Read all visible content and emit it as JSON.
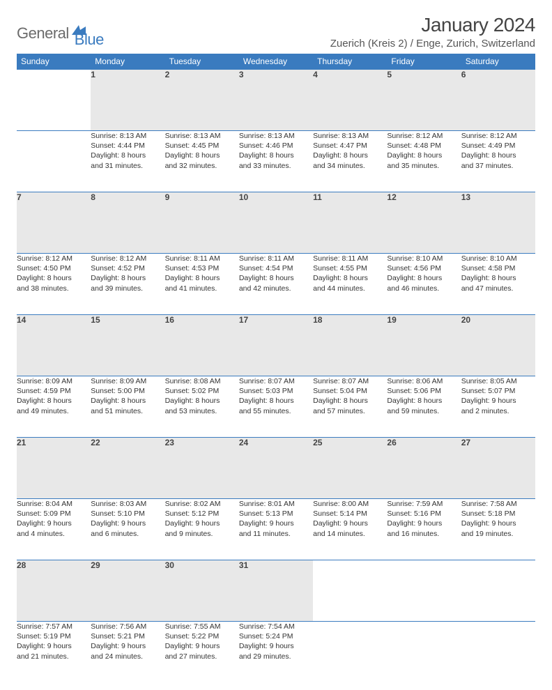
{
  "brand": {
    "part1": "General",
    "part2": "Blue",
    "color_gray": "#6b6b6b",
    "color_blue": "#3a7bbf"
  },
  "title": {
    "month": "January 2024",
    "location": "Zuerich (Kreis 2) / Enge, Zurich, Switzerland"
  },
  "style": {
    "header_bg": "#3a7bbf",
    "header_fg": "#ffffff",
    "daynum_bg": "#e8e8e8",
    "row_border": "#3a7bbf",
    "body_font_size": 10.5,
    "daynum_font_size": 12,
    "header_font_size": 12
  },
  "weekdays": [
    "Sunday",
    "Monday",
    "Tuesday",
    "Wednesday",
    "Thursday",
    "Friday",
    "Saturday"
  ],
  "weeks": [
    {
      "days": [
        {
          "num": "",
          "lines": []
        },
        {
          "num": "1",
          "lines": [
            "Sunrise: 8:13 AM",
            "Sunset: 4:44 PM",
            "Daylight: 8 hours",
            "and 31 minutes."
          ]
        },
        {
          "num": "2",
          "lines": [
            "Sunrise: 8:13 AM",
            "Sunset: 4:45 PM",
            "Daylight: 8 hours",
            "and 32 minutes."
          ]
        },
        {
          "num": "3",
          "lines": [
            "Sunrise: 8:13 AM",
            "Sunset: 4:46 PM",
            "Daylight: 8 hours",
            "and 33 minutes."
          ]
        },
        {
          "num": "4",
          "lines": [
            "Sunrise: 8:13 AM",
            "Sunset: 4:47 PM",
            "Daylight: 8 hours",
            "and 34 minutes."
          ]
        },
        {
          "num": "5",
          "lines": [
            "Sunrise: 8:12 AM",
            "Sunset: 4:48 PM",
            "Daylight: 8 hours",
            "and 35 minutes."
          ]
        },
        {
          "num": "6",
          "lines": [
            "Sunrise: 8:12 AM",
            "Sunset: 4:49 PM",
            "Daylight: 8 hours",
            "and 37 minutes."
          ]
        }
      ]
    },
    {
      "days": [
        {
          "num": "7",
          "lines": [
            "Sunrise: 8:12 AM",
            "Sunset: 4:50 PM",
            "Daylight: 8 hours",
            "and 38 minutes."
          ]
        },
        {
          "num": "8",
          "lines": [
            "Sunrise: 8:12 AM",
            "Sunset: 4:52 PM",
            "Daylight: 8 hours",
            "and 39 minutes."
          ]
        },
        {
          "num": "9",
          "lines": [
            "Sunrise: 8:11 AM",
            "Sunset: 4:53 PM",
            "Daylight: 8 hours",
            "and 41 minutes."
          ]
        },
        {
          "num": "10",
          "lines": [
            "Sunrise: 8:11 AM",
            "Sunset: 4:54 PM",
            "Daylight: 8 hours",
            "and 42 minutes."
          ]
        },
        {
          "num": "11",
          "lines": [
            "Sunrise: 8:11 AM",
            "Sunset: 4:55 PM",
            "Daylight: 8 hours",
            "and 44 minutes."
          ]
        },
        {
          "num": "12",
          "lines": [
            "Sunrise: 8:10 AM",
            "Sunset: 4:56 PM",
            "Daylight: 8 hours",
            "and 46 minutes."
          ]
        },
        {
          "num": "13",
          "lines": [
            "Sunrise: 8:10 AM",
            "Sunset: 4:58 PM",
            "Daylight: 8 hours",
            "and 47 minutes."
          ]
        }
      ]
    },
    {
      "days": [
        {
          "num": "14",
          "lines": [
            "Sunrise: 8:09 AM",
            "Sunset: 4:59 PM",
            "Daylight: 8 hours",
            "and 49 minutes."
          ]
        },
        {
          "num": "15",
          "lines": [
            "Sunrise: 8:09 AM",
            "Sunset: 5:00 PM",
            "Daylight: 8 hours",
            "and 51 minutes."
          ]
        },
        {
          "num": "16",
          "lines": [
            "Sunrise: 8:08 AM",
            "Sunset: 5:02 PM",
            "Daylight: 8 hours",
            "and 53 minutes."
          ]
        },
        {
          "num": "17",
          "lines": [
            "Sunrise: 8:07 AM",
            "Sunset: 5:03 PM",
            "Daylight: 8 hours",
            "and 55 minutes."
          ]
        },
        {
          "num": "18",
          "lines": [
            "Sunrise: 8:07 AM",
            "Sunset: 5:04 PM",
            "Daylight: 8 hours",
            "and 57 minutes."
          ]
        },
        {
          "num": "19",
          "lines": [
            "Sunrise: 8:06 AM",
            "Sunset: 5:06 PM",
            "Daylight: 8 hours",
            "and 59 minutes."
          ]
        },
        {
          "num": "20",
          "lines": [
            "Sunrise: 8:05 AM",
            "Sunset: 5:07 PM",
            "Daylight: 9 hours",
            "and 2 minutes."
          ]
        }
      ]
    },
    {
      "days": [
        {
          "num": "21",
          "lines": [
            "Sunrise: 8:04 AM",
            "Sunset: 5:09 PM",
            "Daylight: 9 hours",
            "and 4 minutes."
          ]
        },
        {
          "num": "22",
          "lines": [
            "Sunrise: 8:03 AM",
            "Sunset: 5:10 PM",
            "Daylight: 9 hours",
            "and 6 minutes."
          ]
        },
        {
          "num": "23",
          "lines": [
            "Sunrise: 8:02 AM",
            "Sunset: 5:12 PM",
            "Daylight: 9 hours",
            "and 9 minutes."
          ]
        },
        {
          "num": "24",
          "lines": [
            "Sunrise: 8:01 AM",
            "Sunset: 5:13 PM",
            "Daylight: 9 hours",
            "and 11 minutes."
          ]
        },
        {
          "num": "25",
          "lines": [
            "Sunrise: 8:00 AM",
            "Sunset: 5:14 PM",
            "Daylight: 9 hours",
            "and 14 minutes."
          ]
        },
        {
          "num": "26",
          "lines": [
            "Sunrise: 7:59 AM",
            "Sunset: 5:16 PM",
            "Daylight: 9 hours",
            "and 16 minutes."
          ]
        },
        {
          "num": "27",
          "lines": [
            "Sunrise: 7:58 AM",
            "Sunset: 5:18 PM",
            "Daylight: 9 hours",
            "and 19 minutes."
          ]
        }
      ]
    },
    {
      "days": [
        {
          "num": "28",
          "lines": [
            "Sunrise: 7:57 AM",
            "Sunset: 5:19 PM",
            "Daylight: 9 hours",
            "and 21 minutes."
          ]
        },
        {
          "num": "29",
          "lines": [
            "Sunrise: 7:56 AM",
            "Sunset: 5:21 PM",
            "Daylight: 9 hours",
            "and 24 minutes."
          ]
        },
        {
          "num": "30",
          "lines": [
            "Sunrise: 7:55 AM",
            "Sunset: 5:22 PM",
            "Daylight: 9 hours",
            "and 27 minutes."
          ]
        },
        {
          "num": "31",
          "lines": [
            "Sunrise: 7:54 AM",
            "Sunset: 5:24 PM",
            "Daylight: 9 hours",
            "and 29 minutes."
          ]
        },
        {
          "num": "",
          "lines": []
        },
        {
          "num": "",
          "lines": []
        },
        {
          "num": "",
          "lines": []
        }
      ]
    }
  ]
}
